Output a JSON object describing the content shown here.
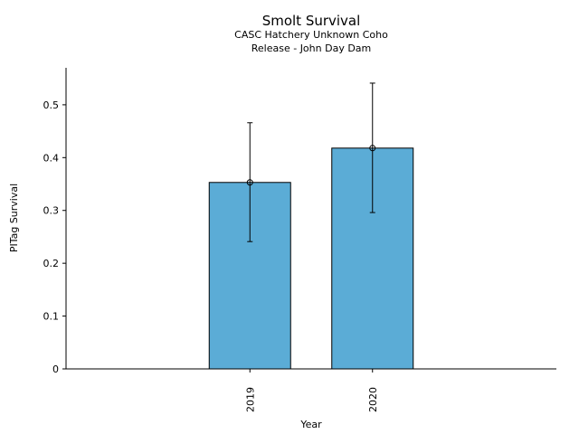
{
  "chart_data": {
    "type": "bar",
    "title": "Smolt Survival",
    "subtitle_lines": [
      "CASC Hatchery Unknown Coho",
      "Release - John Day Dam"
    ],
    "xlabel": "Year",
    "ylabel": "PITag Survival",
    "categories": [
      "2019",
      "2020"
    ],
    "series": [
      {
        "values": [
          0.353,
          0.418
        ],
        "error_low": [
          0.241,
          0.296
        ],
        "error_high": [
          0.466,
          0.541
        ]
      }
    ],
    "ylim": [
      0,
      0.57
    ],
    "yticks": [
      0,
      0.1,
      0.2,
      0.3,
      0.4,
      0.5
    ],
    "ytick_labels": [
      "0",
      "0.1",
      "0.2",
      "0.3",
      "0.4",
      "0.5"
    ],
    "bar_color": "#5BACD6",
    "grid": false,
    "legend": "none"
  }
}
